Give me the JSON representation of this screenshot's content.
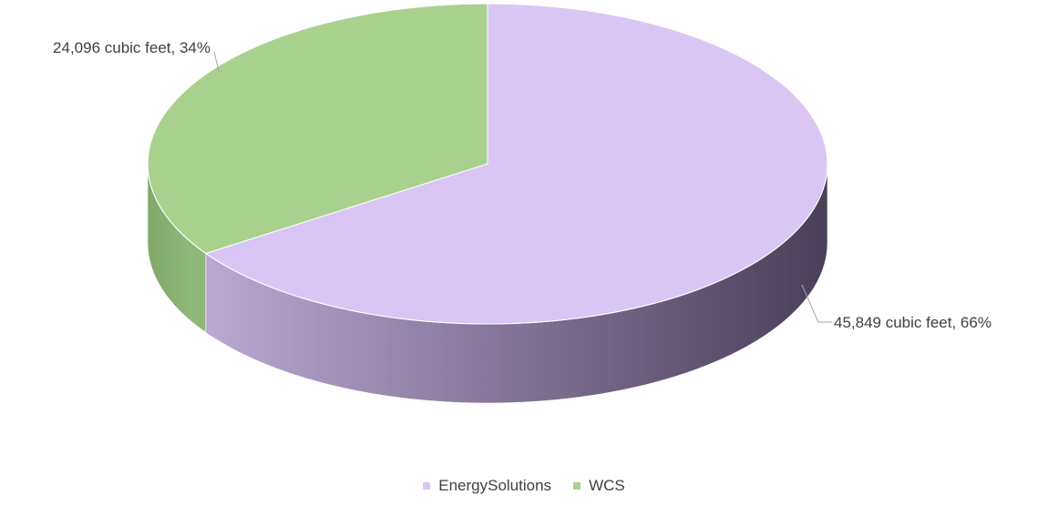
{
  "chart_data": {
    "type": "pie",
    "variant": "3d",
    "categories": [
      "EnergySolutions",
      "WCS"
    ],
    "values": [
      45849,
      24096
    ],
    "percentages": [
      66,
      34
    ],
    "unit": "cubic feet",
    "data_labels": [
      "45,849 cubic feet, 66%",
      "24,096 cubic feet, 34%"
    ],
    "colors": [
      "#d9c6f5",
      "#a9d18e"
    ],
    "legend_position": "bottom",
    "title": ""
  }
}
